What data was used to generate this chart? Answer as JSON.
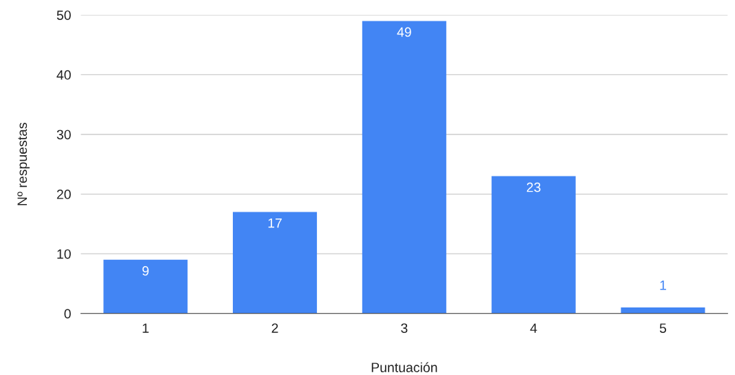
{
  "chart_data": {
    "type": "bar",
    "xlabel": "Puntuación",
    "ylabel": "Nº respuestas",
    "categories": [
      "1",
      "2",
      "3",
      "4",
      "5"
    ],
    "values": [
      9,
      17,
      49,
      23,
      1
    ],
    "color": "#4285f4",
    "ylim": [
      0,
      50
    ],
    "yticks": [
      0,
      10,
      20,
      30,
      40,
      50
    ],
    "grid": "y",
    "data_labels": true
  }
}
